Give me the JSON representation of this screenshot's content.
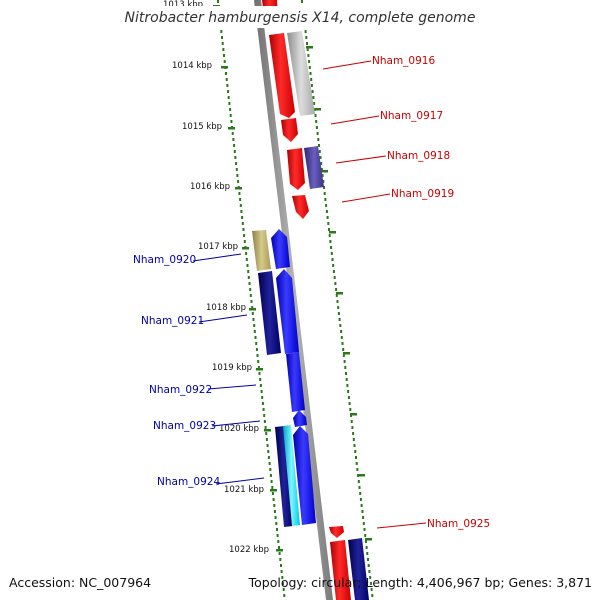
{
  "title": "Nitrobacter hamburgensis X14, complete genome",
  "footer": {
    "accession": "Accession: NC_007964",
    "summary": "Topology: circular; Length: 4,406,967 bp; Genes: 3,871"
  },
  "kbp_labels": [
    "1013 kbp",
    "1014 kbp",
    "1015 kbp",
    "1016 kbp",
    "1017 kbp",
    "1018 kbp",
    "1019 kbp",
    "1020 kbp",
    "1021 kbp",
    "1022 kbp"
  ],
  "genes": {
    "plus": [
      "Nham_0916",
      "Nham_0917",
      "Nham_0918",
      "Nham_0919",
      "Nham_0925"
    ],
    "minus": [
      "Nham_0920",
      "Nham_0921",
      "Nham_0922",
      "Nham_0923",
      "Nham_0924"
    ]
  },
  "colors": {
    "plus_label": "#cc0000",
    "minus_label": "#0000aa",
    "red": "#ff0000",
    "grey": "#c0c0c0",
    "slate": "#4b3f9a",
    "khaki": "#b8ac6c",
    "navy": "#0a0a78",
    "blue": "#0000ee",
    "cyan": "#00e5ff",
    "backbone": "#888888",
    "tick": "#2a7a1a"
  }
}
